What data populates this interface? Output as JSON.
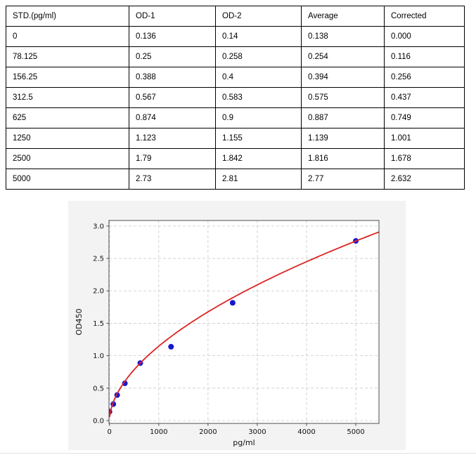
{
  "table": {
    "headers": [
      "STD.(pg/ml)",
      "OD-1",
      "OD-2",
      "Average",
      "Corrected"
    ],
    "rows": [
      [
        "0",
        "0.136",
        "0.14",
        "0.138",
        "0.000"
      ],
      [
        "78.125",
        "0.25",
        "0.258",
        "0.254",
        "0.116"
      ],
      [
        "156.25",
        "0.388",
        "0.4",
        "0.394",
        "0.256"
      ],
      [
        "312.5",
        "0.567",
        "0.583",
        "0.575",
        "0.437"
      ],
      [
        "625",
        "0.874",
        "0.9",
        "0.887",
        "0.749"
      ],
      [
        "1250",
        "1.123",
        "1.155",
        "1.139",
        "1.001"
      ],
      [
        "2500",
        "1.79",
        "1.842",
        "1.816",
        "1.678"
      ],
      [
        "5000",
        "2.73",
        "2.81",
        "2.77",
        "2.632"
      ]
    ]
  },
  "chart_data": {
    "type": "scatter",
    "title": "",
    "xlabel": "pg/ml",
    "ylabel": "OD450",
    "x": [
      0,
      78.125,
      156.25,
      312.5,
      625,
      1250,
      2500,
      5000
    ],
    "y": [
      0.138,
      0.254,
      0.394,
      0.575,
      0.887,
      1.139,
      1.816,
      2.77
    ],
    "fit_curve": {
      "type": "power",
      "a": 0.0261,
      "b": 0.5476,
      "x_min": 4,
      "x_max": 5470
    },
    "xlim": [
      -10,
      5470
    ],
    "ylim": [
      -0.043,
      3.085
    ],
    "xticks": [
      0,
      1000,
      2000,
      3000,
      4000,
      5000
    ],
    "yticks": [
      0.0,
      0.5,
      1.0,
      1.5,
      2.0,
      2.5,
      3.0
    ],
    "grid": true,
    "legend": null,
    "point_color": "#1717cd",
    "line_color": "#de2323",
    "figure_bg": "#f3f3f3",
    "plot_bg": "#ffffff",
    "grid_color": "#c9c9c9",
    "spine_color": "#4d4d4d",
    "label_color": "#111111"
  }
}
